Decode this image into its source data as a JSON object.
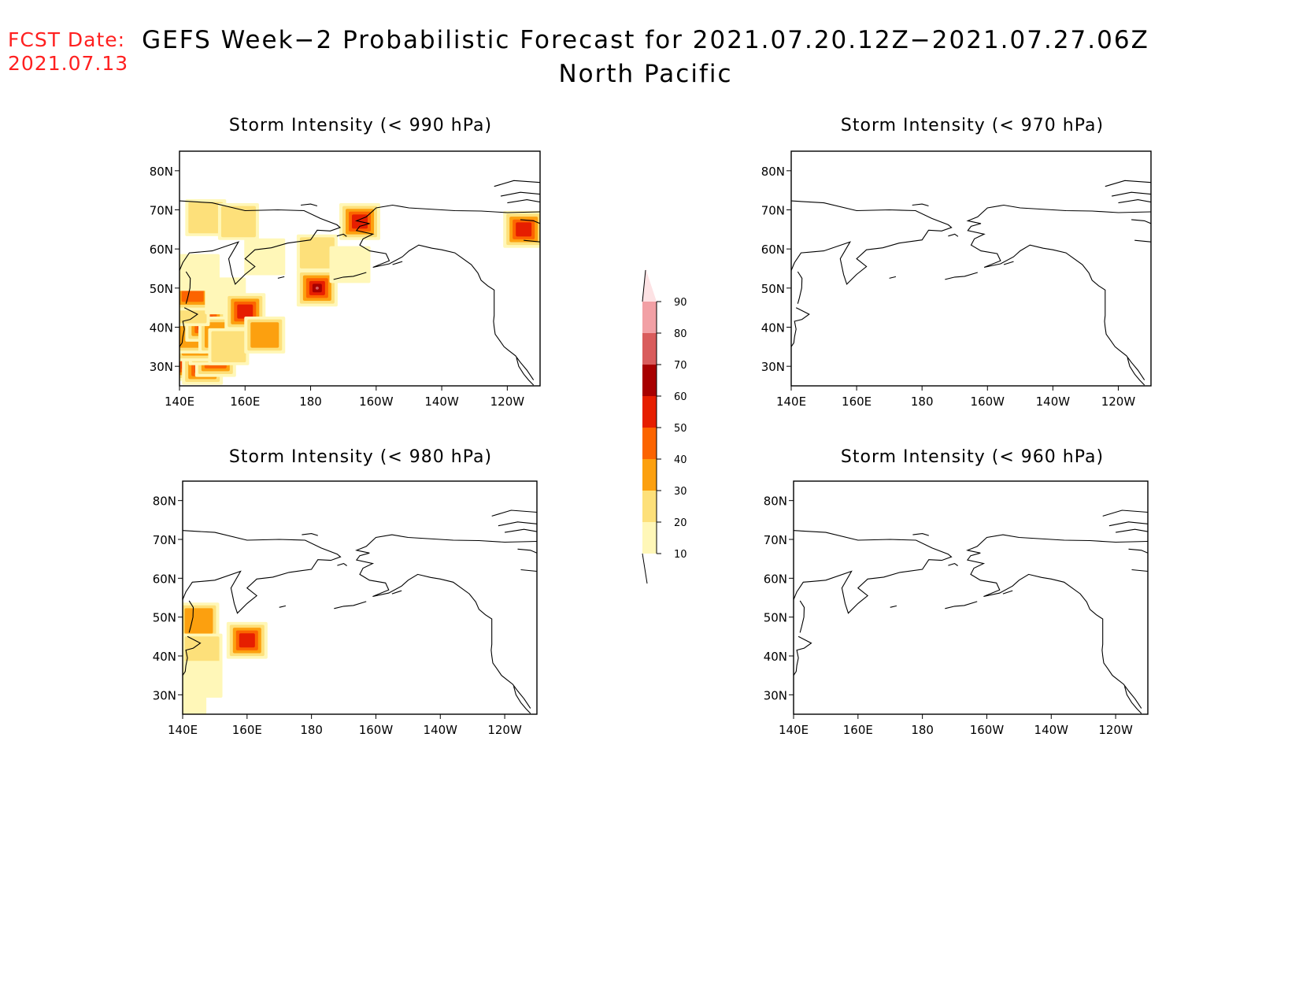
{
  "fcst_date": {
    "label": "FCST Date:",
    "value": "2021.07.13"
  },
  "title": {
    "line1": "GEFS Week−2 Probabilistic Forecast for 2021.07.20.12Z−2021.07.27.06Z",
    "line2": "North Pacific"
  },
  "colors": {
    "text_red": "#ff2020",
    "scale": [
      "#fff7b8",
      "#fde07a",
      "#fca00f",
      "#fc6400",
      "#e61e00",
      "#a80000",
      "#d95c5c",
      "#f2a0a5",
      "#fde2e4"
    ]
  },
  "chart_data": [
    {
      "type": "heatmap",
      "panel": "top-left",
      "title": "Storm Intensity (< 990 hPa)",
      "x_ticks": [
        "140E",
        "160E",
        "180",
        "160W",
        "140W",
        "120W"
      ],
      "y_ticks": [
        "80N",
        "70N",
        "60N",
        "50N",
        "40N",
        "30N"
      ],
      "lon_range": [
        140,
        250
      ],
      "lat_range": [
        25,
        85
      ],
      "cells": [
        {
          "lon": 143,
          "lat": 31,
          "v": 60
        },
        {
          "lon": 147,
          "lat": 30,
          "v": 50
        },
        {
          "lon": 151,
          "lat": 32,
          "v": 40
        },
        {
          "lon": 149,
          "lat": 35,
          "v": 40
        },
        {
          "lon": 145,
          "lat": 36,
          "v": 30
        },
        {
          "lon": 142,
          "lat": 38,
          "v": 30
        },
        {
          "lon": 148,
          "lat": 41,
          "v": 50
        },
        {
          "lon": 152,
          "lat": 38,
          "v": 30
        },
        {
          "lon": 155,
          "lat": 35,
          "v": 20
        },
        {
          "lon": 143,
          "lat": 45,
          "v": 20
        },
        {
          "lon": 144,
          "lat": 49,
          "v": 40
        },
        {
          "lon": 146,
          "lat": 54,
          "v": 10
        },
        {
          "lon": 154,
          "lat": 48,
          "v": 10
        },
        {
          "lon": 160,
          "lat": 44,
          "v": 50
        },
        {
          "lon": 166,
          "lat": 38,
          "v": 30
        },
        {
          "lon": 182,
          "lat": 50,
          "v": 70
        },
        {
          "lon": 148,
          "lat": 68,
          "v": 20
        },
        {
          "lon": 158,
          "lat": 67,
          "v": 20
        },
        {
          "lon": 166,
          "lat": 58,
          "v": 10
        },
        {
          "lon": 182,
          "lat": 59,
          "v": 20
        },
        {
          "lon": 192,
          "lat": 56,
          "v": 10
        },
        {
          "lon": 195,
          "lat": 67,
          "v": 50
        },
        {
          "lon": 245,
          "lat": 65,
          "v": 50
        }
      ]
    },
    {
      "type": "heatmap",
      "panel": "top-right",
      "title": "Storm Intensity (< 970 hPa)",
      "x_ticks": [
        "140E",
        "160E",
        "180",
        "160W",
        "140W",
        "120W"
      ],
      "y_ticks": [
        "80N",
        "70N",
        "60N",
        "50N",
        "40N",
        "30N"
      ],
      "lon_range": [
        140,
        250
      ],
      "lat_range": [
        25,
        85
      ],
      "cells": []
    },
    {
      "type": "heatmap",
      "panel": "bottom-left",
      "title": "Storm Intensity (< 980 hPa)",
      "x_ticks": [
        "140E",
        "160E",
        "180",
        "160W",
        "140W",
        "120W"
      ],
      "y_ticks": [
        "80N",
        "70N",
        "60N",
        "50N",
        "40N",
        "30N"
      ],
      "lon_range": [
        140,
        250
      ],
      "lat_range": [
        25,
        85
      ],
      "cells": [
        {
          "lon": 145,
          "lat": 49,
          "v": 30
        },
        {
          "lon": 146,
          "lat": 41,
          "v": 20
        },
        {
          "lon": 146,
          "lat": 34,
          "v": 10
        },
        {
          "lon": 160,
          "lat": 44,
          "v": 50
        },
        {
          "lon": 141,
          "lat": 29,
          "v": 10
        }
      ]
    },
    {
      "type": "heatmap",
      "panel": "bottom-right",
      "title": "Storm Intensity (< 960 hPa)",
      "x_ticks": [
        "140E",
        "160E",
        "180",
        "160W",
        "140W",
        "120W"
      ],
      "y_ticks": [
        "80N",
        "70N",
        "60N",
        "50N",
        "40N",
        "30N"
      ],
      "lon_range": [
        140,
        250
      ],
      "lat_range": [
        25,
        85
      ],
      "cells": []
    }
  ],
  "colorbar": {
    "levels": [
      "10",
      "20",
      "30",
      "40",
      "50",
      "60",
      "70",
      "80",
      "90"
    ]
  }
}
